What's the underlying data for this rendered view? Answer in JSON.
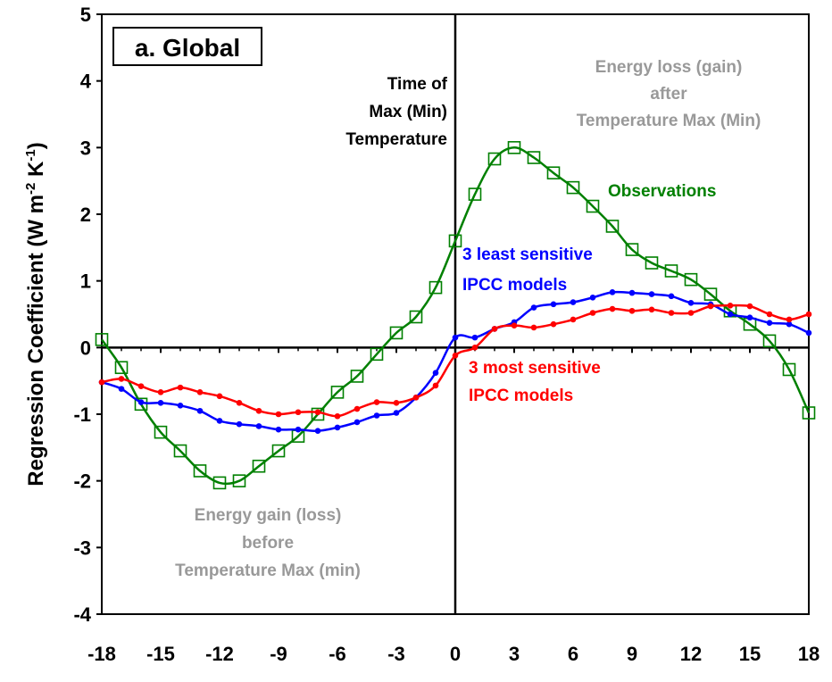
{
  "chart_data": {
    "type": "line",
    "title": "a. Global",
    "xlabel": "",
    "ylabel_parts": [
      "Regression Coefficient (W m",
      "-2",
      " K",
      "-1",
      ")"
    ],
    "xlim": [
      -18,
      18
    ],
    "ylim": [
      -4,
      5
    ],
    "x_ticks": [
      -18,
      -15,
      -12,
      -9,
      -6,
      -3,
      0,
      3,
      6,
      9,
      12,
      15,
      18
    ],
    "y_ticks": [
      -4,
      -3,
      -2,
      -1,
      0,
      1,
      2,
      3,
      4,
      5
    ],
    "x_tick_labels": [
      "-18",
      "-15",
      "-12",
      "-9",
      "-6",
      "-3",
      "0",
      "3",
      "6",
      "9",
      "12",
      "15",
      "18"
    ],
    "y_tick_labels": [
      "-4",
      "-3",
      "-2",
      "-1",
      "0",
      "1",
      "2",
      "3",
      "4",
      "5"
    ],
    "grid": false,
    "series": [
      {
        "name": "Observations",
        "color": "#008000",
        "marker": "open-square",
        "x": [
          -18,
          -17,
          -16,
          -15,
          -14,
          -13,
          -12,
          -11,
          -10,
          -9,
          -8,
          -7,
          -6,
          -5,
          -4,
          -3,
          -2,
          -1,
          0,
          1,
          2,
          3,
          4,
          5,
          6,
          7,
          8,
          9,
          10,
          11,
          12,
          13,
          14,
          15,
          16,
          17,
          18
        ],
        "values": [
          0.12,
          -0.3,
          -0.85,
          -1.27,
          -1.55,
          -1.85,
          -2.03,
          -2.0,
          -1.78,
          -1.55,
          -1.33,
          -1.0,
          -0.67,
          -0.43,
          -0.1,
          0.22,
          0.46,
          0.9,
          1.6,
          2.3,
          2.83,
          3.0,
          2.85,
          2.62,
          2.4,
          2.12,
          1.82,
          1.47,
          1.27,
          1.15,
          1.02,
          0.8,
          0.55,
          0.35,
          0.1,
          -0.33,
          -0.98
        ]
      },
      {
        "name": "3 least sensitive IPCC models",
        "color": "#0000ff",
        "marker": "dot",
        "x": [
          -18,
          -17,
          -16,
          -15,
          -14,
          -13,
          -12,
          -11,
          -10,
          -9,
          -8,
          -7,
          -6,
          -5,
          -4,
          -3,
          -2,
          -1,
          0,
          1,
          2,
          3,
          4,
          5,
          6,
          7,
          8,
          9,
          10,
          11,
          12,
          13,
          14,
          15,
          16,
          17,
          18
        ],
        "values": [
          -0.52,
          -0.62,
          -0.82,
          -0.83,
          -0.87,
          -0.95,
          -1.1,
          -1.15,
          -1.18,
          -1.23,
          -1.23,
          -1.25,
          -1.2,
          -1.12,
          -1.02,
          -0.98,
          -0.75,
          -0.38,
          0.15,
          0.15,
          0.28,
          0.38,
          0.6,
          0.65,
          0.68,
          0.75,
          0.83,
          0.82,
          0.8,
          0.77,
          0.67,
          0.65,
          0.5,
          0.45,
          0.37,
          0.35,
          0.22
        ]
      },
      {
        "name": "3 most sensitive IPCC models",
        "color": "#ff0000",
        "marker": "dot",
        "x": [
          -18,
          -17,
          -16,
          -15,
          -14,
          -13,
          -12,
          -11,
          -10,
          -9,
          -8,
          -7,
          -6,
          -5,
          -4,
          -3,
          -2,
          -1,
          0,
          1,
          2,
          3,
          4,
          5,
          6,
          7,
          8,
          9,
          10,
          11,
          12,
          13,
          14,
          15,
          16,
          17,
          18
        ],
        "values": [
          -0.52,
          -0.47,
          -0.58,
          -0.67,
          -0.6,
          -0.67,
          -0.73,
          -0.83,
          -0.95,
          -1.0,
          -0.97,
          -0.97,
          -1.03,
          -0.92,
          -0.82,
          -0.83,
          -0.75,
          -0.57,
          -0.12,
          0.0,
          0.28,
          0.33,
          0.3,
          0.35,
          0.42,
          0.52,
          0.58,
          0.55,
          0.57,
          0.52,
          0.52,
          0.62,
          0.63,
          0.62,
          0.5,
          0.42,
          0.5
        ]
      }
    ],
    "annotations": {
      "vline_lines": [
        "Time of",
        "Max (Min)",
        "Temperature"
      ],
      "observations_label": "Observations",
      "least_sensitive_lines": [
        "3 least sensitive",
        "IPCC models"
      ],
      "most_sensitive_lines": [
        "3 most sensitive",
        "IPCC models"
      ],
      "after_lines": [
        "Energy loss (gain)",
        "after",
        "Temperature Max (Min)"
      ],
      "before_lines": [
        "Energy gain (loss)",
        "before",
        "Temperature Max (min)"
      ]
    },
    "annotation_color": "#999999"
  }
}
